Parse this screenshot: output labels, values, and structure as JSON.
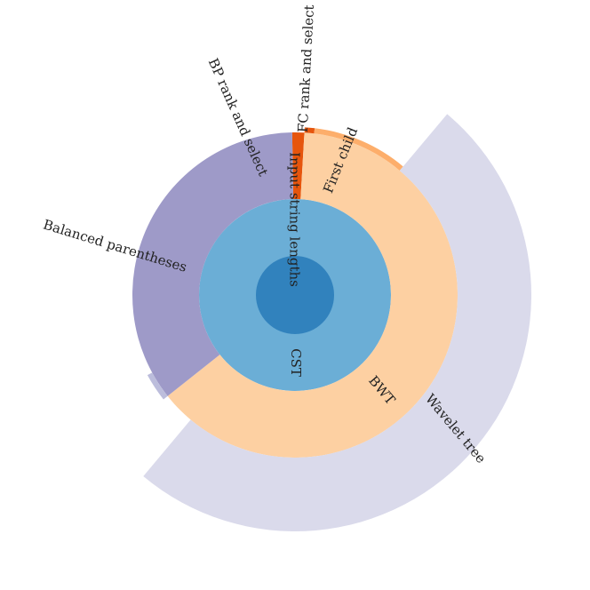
{
  "chart_data": {
    "type": "sunburst",
    "title": "",
    "root": {
      "name": "CST",
      "value": 100,
      "color": "#3182bd",
      "children": [
        {
          "name": "Input string lengths",
          "value": 1.2,
          "color": "#e6550d",
          "children": []
        },
        {
          "name": "BWT",
          "value": 63.4,
          "color": "#fdd0a2",
          "children": [
            {
              "name": "FC rank and select",
              "value": 1.5,
              "color": "#e6550d"
            },
            {
              "name": "First child",
              "value": 14.6,
              "color": "#fdae6b"
            },
            {
              "name": "Wavelet tree",
              "value": 78.8,
              "color": "#dadaeb"
            }
          ]
        },
        {
          "name": "Balanced parentheses",
          "value": 35.4,
          "color": "#9e9ac8",
          "children": [
            {
              "name": "BP rank and select",
              "value": 7.8,
              "color": "#bcbddc"
            }
          ]
        }
      ]
    },
    "inner_color": "#6baed6",
    "legend": "none",
    "grid": false
  }
}
